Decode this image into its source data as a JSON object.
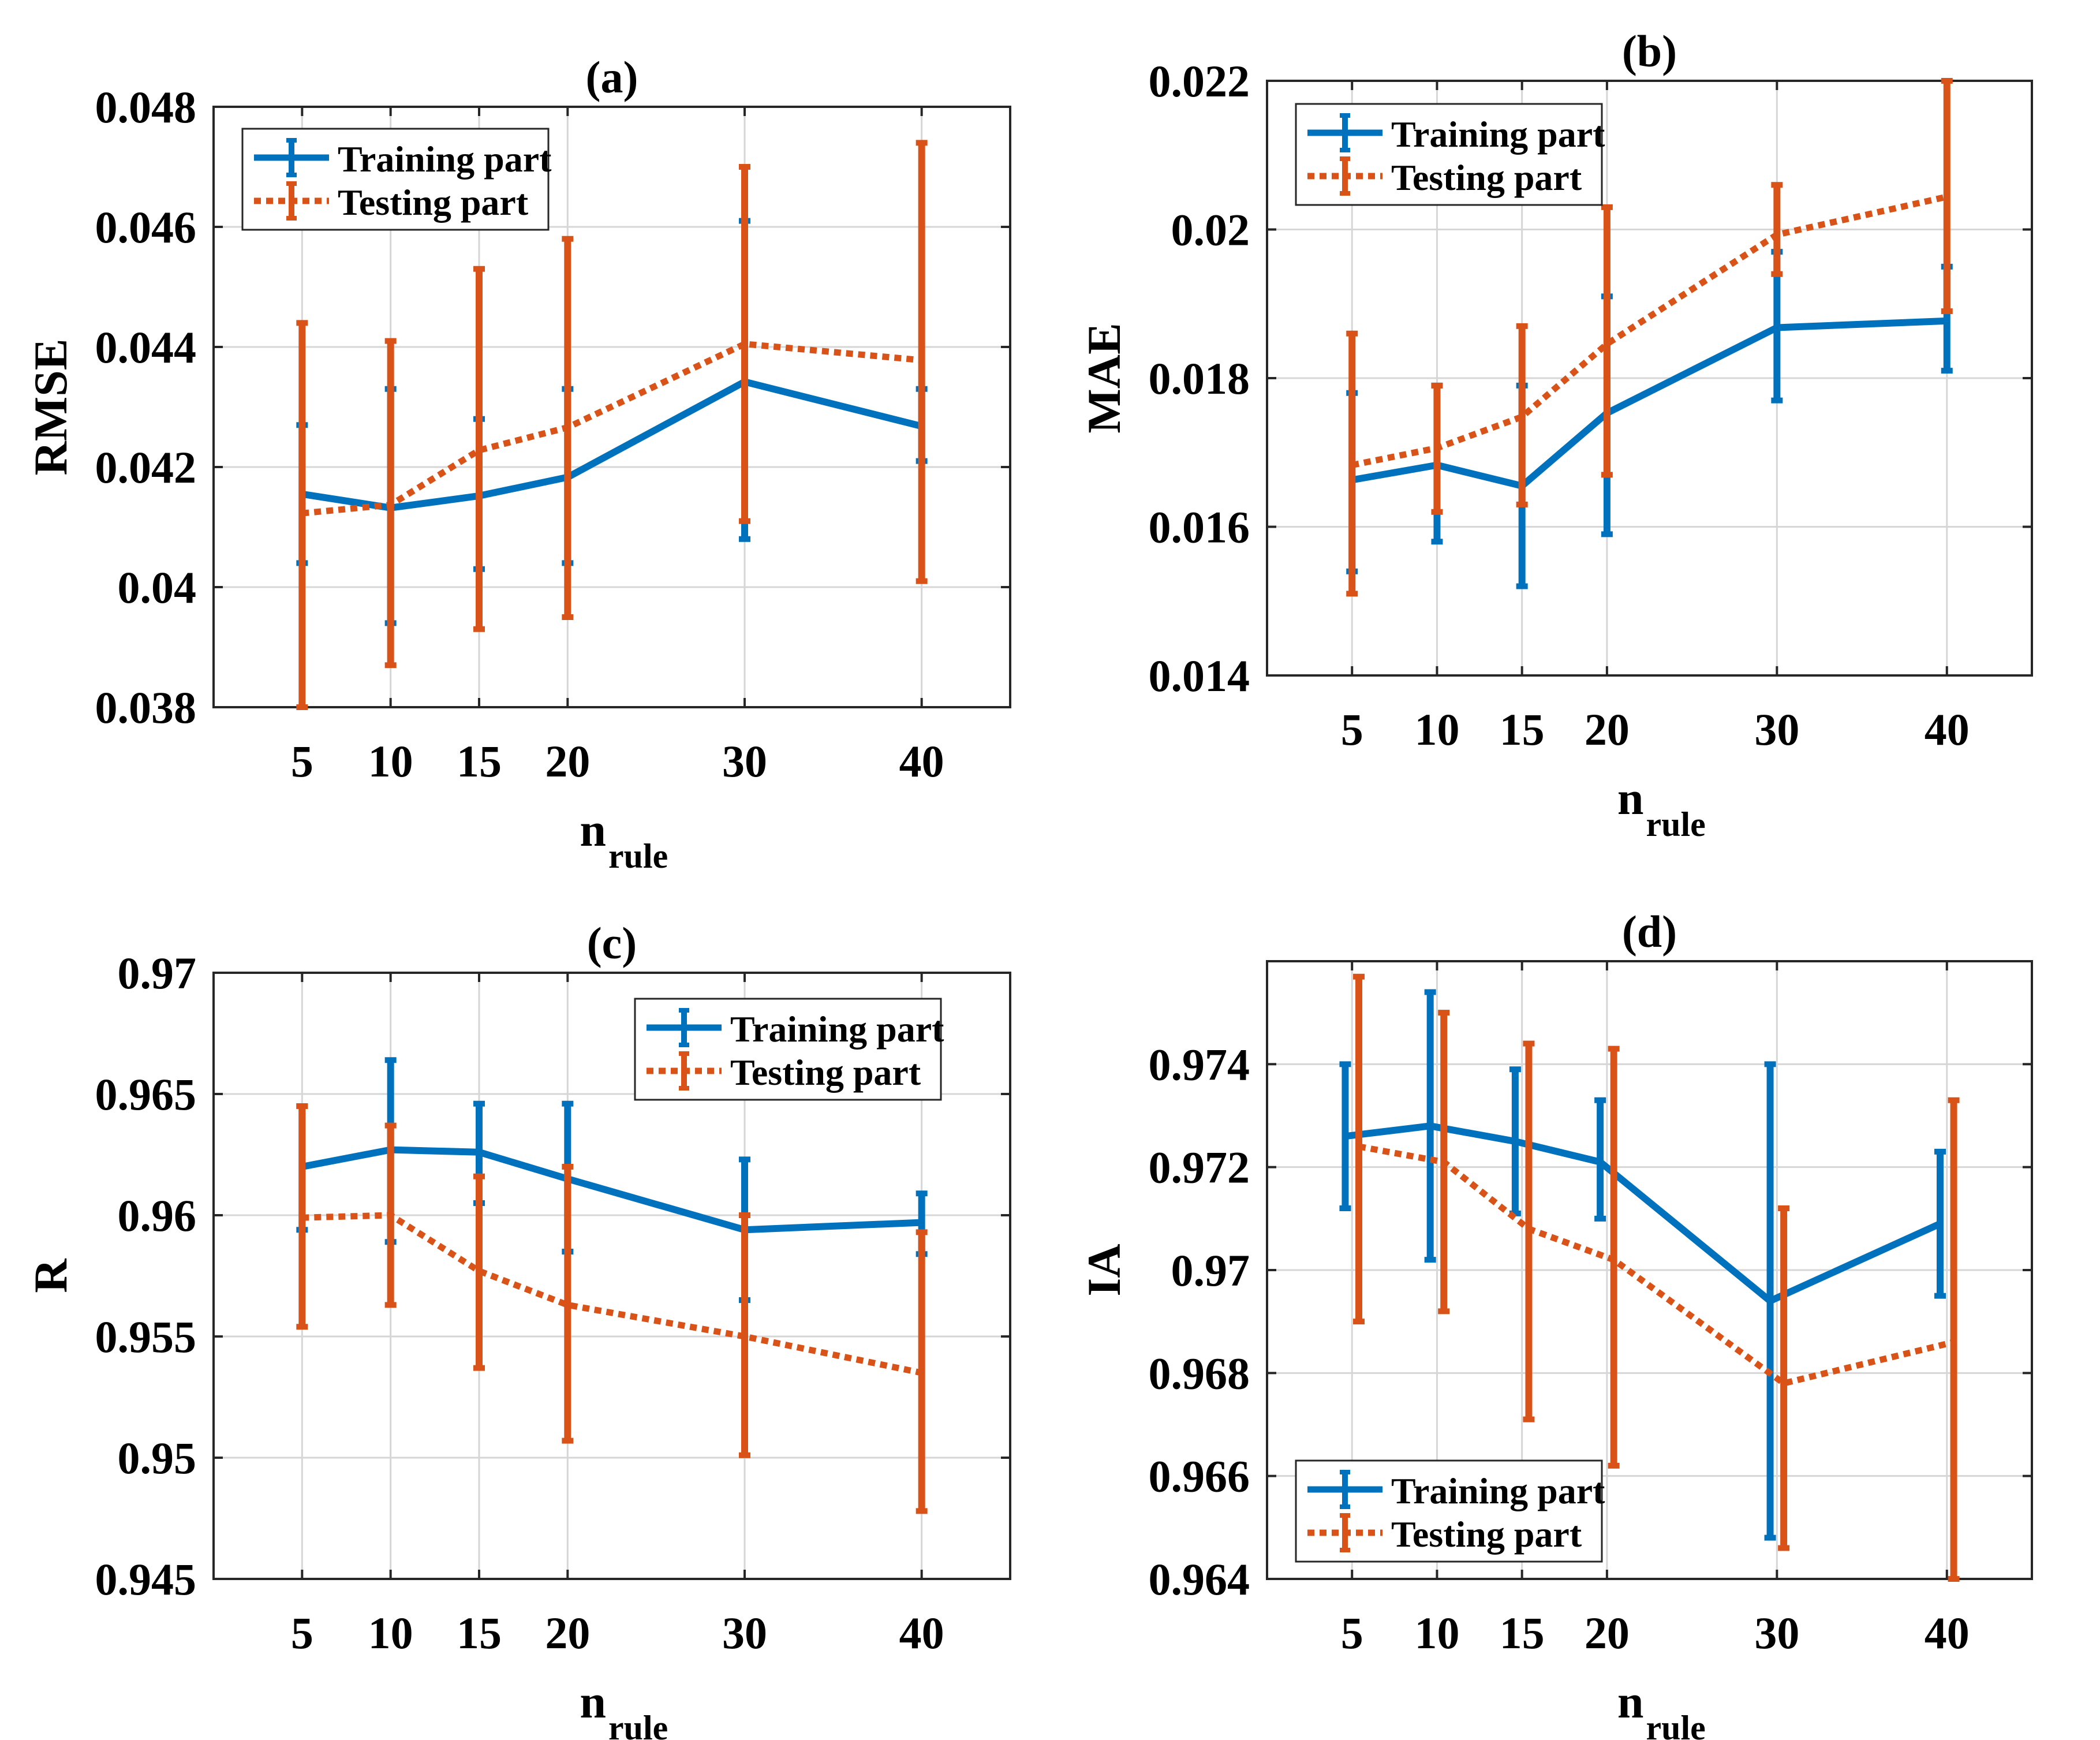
{
  "colors": {
    "training": "#0072BD",
    "testing": "#D95319",
    "grid": "#d6d6d6",
    "axis": "#262626"
  },
  "chart_data": [
    {
      "id": "a",
      "type": "line",
      "title": "(a)",
      "xlabel_main": "n",
      "xlabel_sub": "rule",
      "ylabel": "RMSE",
      "xlim": [
        0,
        45
      ],
      "ylim": [
        0.038,
        0.048
      ],
      "x": [
        5,
        10,
        15,
        20,
        30,
        40
      ],
      "xtick_labels": [
        "5",
        "10",
        "15",
        "20",
        "30",
        "40"
      ],
      "yticks": [
        0.038,
        0.04,
        0.042,
        0.044,
        0.046,
        0.048
      ],
      "ytick_labels": [
        "0.038",
        "0.04",
        "0.042",
        "0.044",
        "0.046",
        "0.048"
      ],
      "legend_position": "top-left",
      "series": [
        {
          "name": "Training part",
          "style": "solid",
          "offset": 0,
          "values": [
            0.04155,
            0.04132,
            0.04152,
            0.04183,
            0.04342,
            0.04268
          ],
          "lower": [
            0.0404,
            0.0394,
            0.0403,
            0.0404,
            0.0408,
            0.0421
          ],
          "upper": [
            0.0427,
            0.0433,
            0.0428,
            0.0433,
            0.0461,
            0.0433
          ]
        },
        {
          "name": "Testing part",
          "style": "dotted",
          "offset": 0,
          "values": [
            0.04123,
            0.04137,
            0.04228,
            0.04266,
            0.04405,
            0.04378
          ],
          "lower": [
            0.038,
            0.0387,
            0.0393,
            0.0395,
            0.0411,
            0.0401
          ],
          "upper": [
            0.0444,
            0.0441,
            0.0453,
            0.0458,
            0.047,
            0.0474
          ]
        }
      ]
    },
    {
      "id": "b",
      "type": "line",
      "title": "(b)",
      "xlabel_main": "n",
      "xlabel_sub": "rule",
      "ylabel": "MAE",
      "xlim": [
        0,
        45
      ],
      "ylim": [
        0.014,
        0.022
      ],
      "x": [
        5,
        10,
        15,
        20,
        30,
        40
      ],
      "xtick_labels": [
        "5",
        "10",
        "15",
        "20",
        "30",
        "40"
      ],
      "yticks": [
        0.014,
        0.016,
        0.018,
        0.02,
        0.022
      ],
      "ytick_labels": [
        "0.014",
        "0.016",
        "0.018",
        "0.02",
        "0.022"
      ],
      "legend_position": "top-left",
      "series": [
        {
          "name": "Training part",
          "style": "solid",
          "offset": 0,
          "values": [
            0.01663,
            0.01683,
            0.01655,
            0.01753,
            0.01868,
            0.01877
          ],
          "lower": [
            0.0154,
            0.0158,
            0.0152,
            0.0159,
            0.0177,
            0.0181
          ],
          "upper": [
            0.0178,
            0.0179,
            0.0179,
            0.0191,
            0.0197,
            0.0195
          ]
        },
        {
          "name": "Testing part",
          "style": "dotted",
          "offset": 0,
          "values": [
            0.01683,
            0.01706,
            0.01748,
            0.01846,
            0.01993,
            0.02044
          ],
          "lower": [
            0.0151,
            0.0162,
            0.0163,
            0.0167,
            0.0194,
            0.0189
          ],
          "upper": [
            0.0186,
            0.0179,
            0.0187,
            0.0203,
            0.0206,
            0.022
          ]
        }
      ]
    },
    {
      "id": "c",
      "type": "line",
      "title": "(c)",
      "xlabel_main": "n",
      "xlabel_sub": "rule",
      "ylabel": "R",
      "xlim": [
        0,
        45
      ],
      "ylim": [
        0.945,
        0.97
      ],
      "x": [
        5,
        10,
        15,
        20,
        30,
        40
      ],
      "xtick_labels": [
        "5",
        "10",
        "15",
        "20",
        "30",
        "40"
      ],
      "yticks": [
        0.945,
        0.95,
        0.955,
        0.96,
        0.965,
        0.97
      ],
      "ytick_labels": [
        "0.945",
        "0.95",
        "0.955",
        "0.96",
        "0.965",
        "0.97"
      ],
      "legend_position": "top-right",
      "series": [
        {
          "name": "Training part",
          "style": "solid",
          "offset": 0,
          "values": [
            0.962,
            0.9627,
            0.9626,
            0.9615,
            0.9594,
            0.9597
          ],
          "lower": [
            0.9594,
            0.9589,
            0.9605,
            0.9585,
            0.9565,
            0.9584
          ],
          "upper": [
            0.9645,
            0.9664,
            0.9646,
            0.9646,
            0.9623,
            0.9609
          ]
        },
        {
          "name": "Testing part",
          "style": "dotted",
          "offset": 0,
          "values": [
            0.9599,
            0.96,
            0.9577,
            0.9563,
            0.955,
            0.9535
          ],
          "lower": [
            0.9554,
            0.9563,
            0.9537,
            0.9507,
            0.9501,
            0.9478
          ],
          "upper": [
            0.9645,
            0.9637,
            0.9616,
            0.962,
            0.96,
            0.9593
          ]
        }
      ]
    },
    {
      "id": "d",
      "type": "line",
      "title": "(d)",
      "xlabel_main": "n",
      "xlabel_sub": "rule",
      "ylabel": "IA",
      "xlim": [
        0,
        45
      ],
      "ylim": [
        0.964,
        0.976
      ],
      "x": [
        5,
        10,
        15,
        20,
        30,
        40
      ],
      "xtick_labels": [
        "5",
        "10",
        "15",
        "20",
        "30",
        "40"
      ],
      "yticks": [
        0.964,
        0.966,
        0.968,
        0.97,
        0.972,
        0.974
      ],
      "ytick_labels": [
        "0.964",
        "0.966",
        "0.968",
        "0.97",
        "0.972",
        "0.974"
      ],
      "legend_position": "bottom-left",
      "series": [
        {
          "name": "Training part",
          "style": "solid",
          "offset": -0.4,
          "values": [
            0.9726,
            0.9728,
            0.9725,
            0.9721,
            0.9694,
            0.9709
          ],
          "lower": [
            0.9712,
            0.9702,
            0.9711,
            0.971,
            0.9648,
            0.9695
          ],
          "upper": [
            0.974,
            0.9754,
            0.9739,
            0.9733,
            0.974,
            0.9723
          ]
        },
        {
          "name": "Testing part",
          "style": "dotted",
          "offset": 0.4,
          "values": [
            0.9724,
            0.9721,
            0.9708,
            0.9702,
            0.9678,
            0.9686
          ],
          "lower": [
            0.969,
            0.9692,
            0.9671,
            0.9662,
            0.9646,
            0.964
          ],
          "upper": [
            0.9757,
            0.975,
            0.9744,
            0.9743,
            0.9712,
            0.9733
          ]
        }
      ]
    }
  ]
}
